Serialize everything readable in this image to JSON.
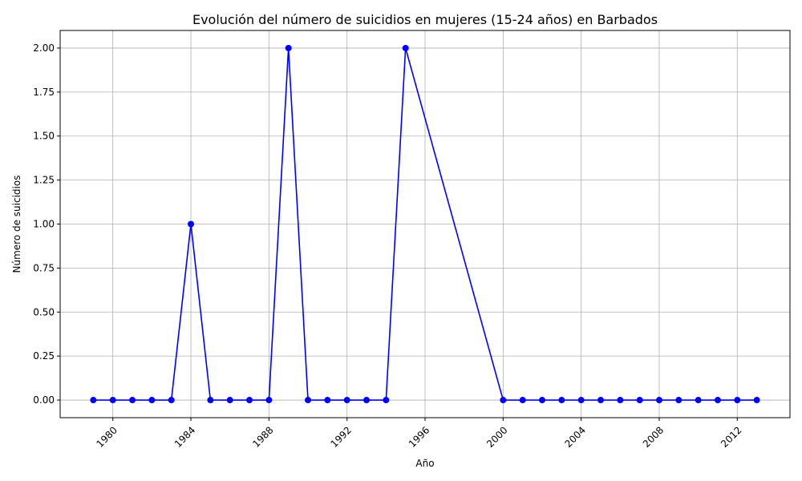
{
  "chart_data": {
    "type": "line",
    "title": "Evolución del número de suicidios en mujeres (15-24 años) en Barbados",
    "xlabel": "Año",
    "ylabel": "Número de suicidios",
    "x": [
      1979,
      1980,
      1981,
      1982,
      1983,
      1984,
      1985,
      1986,
      1987,
      1988,
      1989,
      1990,
      1991,
      1992,
      1993,
      1994,
      1995,
      2000,
      2001,
      2002,
      2003,
      2004,
      2005,
      2006,
      2007,
      2008,
      2009,
      2010,
      2011,
      2012,
      2013
    ],
    "series": [
      {
        "values": [
          0,
          0,
          0,
          0,
          0,
          1,
          0,
          0,
          0,
          0,
          2,
          0,
          0,
          0,
          0,
          0,
          2,
          0,
          0,
          0,
          0,
          0,
          0,
          0,
          0,
          0,
          0,
          0,
          0,
          0,
          0
        ],
        "color": "#0000ff",
        "marker": "circle"
      }
    ],
    "xticks": [
      "1980",
      "1984",
      "1988",
      "1992",
      "1996",
      "2000",
      "2004",
      "2008",
      "2012"
    ],
    "yticks": [
      "0.00",
      "0.25",
      "0.50",
      "0.75",
      "1.00",
      "1.25",
      "1.50",
      "1.75",
      "2.00"
    ],
    "xlim": [
      1977.3,
      2014.7
    ],
    "ylim": [
      -0.1,
      2.1
    ],
    "grid": true
  }
}
